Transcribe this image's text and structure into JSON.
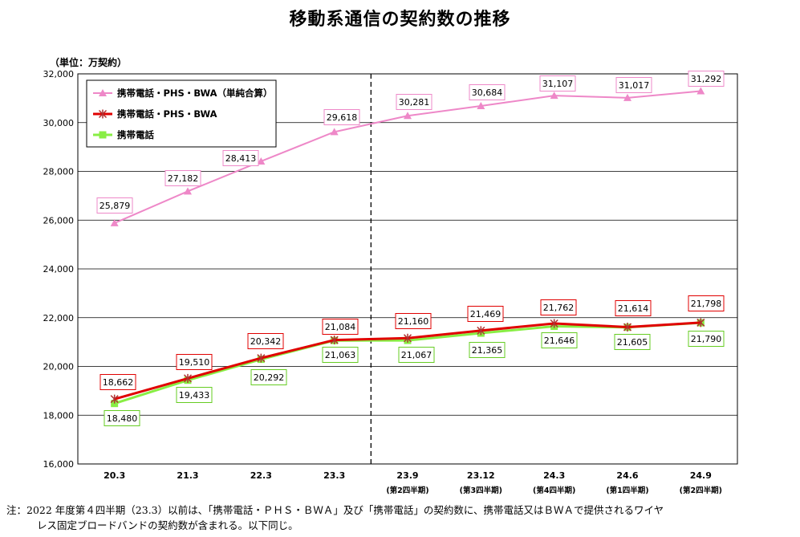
{
  "title": "移動系通信の契約数の推移",
  "unit_label": "（単位：万契約）",
  "note": {
    "line1": "注：2022 年度第４四半期（23.3）以前は、「携帯電話・ＰＨＳ・ＢＷＡ」及び「携帯電話」の契約数に、携帯電話又はＢＷＡで提供されるワイヤ",
    "line2": "レス固定ブロードバンドの契約数が含まれる。以下同じ。"
  },
  "chart_data": {
    "type": "line",
    "categories": [
      "20.3",
      "21.3",
      "22.3",
      "23.3",
      "23.9",
      "23.12",
      "24.3",
      "24.6",
      "24.9"
    ],
    "sub_labels": [
      "",
      "",
      "",
      "",
      "(第2四半期)",
      "(第3四半期)",
      "(第4四半期)",
      "(第1四半期)",
      "(第2四半期)"
    ],
    "ylim": [
      16000,
      32000
    ],
    "yticks": [
      16000,
      18000,
      20000,
      22000,
      24000,
      26000,
      28000,
      30000,
      32000
    ],
    "ytick_labels": [
      "16,000",
      "18,000",
      "20,000",
      "22,000",
      "24,000",
      "26,000",
      "28,000",
      "30,000",
      "32,000"
    ],
    "grid": true,
    "legend_position": "top-left",
    "divider_after_category": "23.3",
    "series": [
      {
        "name": "携帯電話・PHS・BWA（単純合算）",
        "color": "#ee88c8",
        "marker": "triangle",
        "values": [
          25879,
          27182,
          28413,
          29618,
          30281,
          30684,
          31107,
          31017,
          31292
        ],
        "labels": [
          "25,879",
          "27,182",
          "28,413",
          "29,618",
          "30,281",
          "30,684",
          "31,107",
          "31,017",
          "31,292"
        ]
      },
      {
        "name": "携帯電話・PHS・BWA",
        "color": "#e00000",
        "marker": "star",
        "values": [
          18662,
          19510,
          20342,
          21084,
          21160,
          21469,
          21762,
          21614,
          21798
        ],
        "labels": [
          "18,662",
          "19,510",
          "20,342",
          "21,084",
          "21,160",
          "21,469",
          "21,762",
          "21,614",
          "21,798"
        ]
      },
      {
        "name": "携帯電話",
        "color": "#88ee44",
        "marker": "square",
        "values": [
          18480,
          19433,
          20292,
          21063,
          21067,
          21365,
          21646,
          21605,
          21790
        ],
        "labels": [
          "18,480",
          "19,433",
          "20,292",
          "21,063",
          "21,067",
          "21,365",
          "21,646",
          "21,605",
          "21,790"
        ]
      }
    ]
  }
}
